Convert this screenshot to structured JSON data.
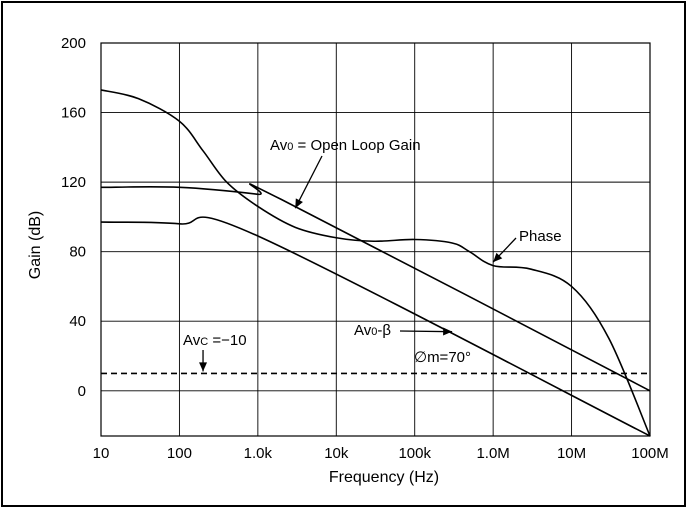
{
  "chart_data": {
    "type": "line",
    "title": "",
    "xlabel": "Frequency (Hz)",
    "ylabel": "Gain (dB)",
    "x_scale": "log",
    "x_ticks": [
      10,
      100,
      1000,
      10000,
      100000,
      1000000,
      10000000,
      100000000
    ],
    "x_tick_labels": [
      "10",
      "100",
      "1.0k",
      "10k",
      "100k",
      "1.0M",
      "10M",
      "100M"
    ],
    "y_ticks": [
      0,
      40,
      80,
      120,
      160,
      200
    ],
    "y_tick_labels": [
      "0",
      "40",
      "80",
      "120",
      "160",
      "200"
    ],
    "xlim": [
      10,
      100000000
    ],
    "ylim": [
      -26,
      200
    ],
    "grid": true,
    "series": [
      {
        "name": "Avo = Open Loop Gain",
        "style": "solid",
        "x": [
          10,
          100,
          1000,
          2000,
          100000000
        ],
        "y": [
          117,
          117,
          113,
          110,
          0
        ]
      },
      {
        "name": "Avo-β",
        "style": "solid",
        "x": [
          10,
          100,
          1000,
          100000000
        ],
        "y": [
          97,
          96,
          89,
          -26
        ]
      },
      {
        "name": "Phase",
        "style": "solid",
        "x": [
          10,
          30,
          100,
          200,
          400,
          1000,
          3000,
          10000,
          30000,
          100000,
          300000,
          500000,
          1000000,
          3000000,
          10000000,
          30000000,
          100000000
        ],
        "y": [
          173,
          168,
          155,
          138,
          120,
          106,
          94,
          88,
          86,
          87,
          85,
          80,
          72,
          70,
          60,
          30,
          -26
        ]
      },
      {
        "name": "Avc = -10",
        "style": "dashed",
        "x": [
          10,
          100000000
        ],
        "y": [
          10,
          10
        ]
      }
    ],
    "annotations": {
      "open_loop": {
        "text": "Avo = Open Loop Gain",
        "points_to_x": 3000,
        "points_to_y": 105
      },
      "phase": {
        "text": "Phase",
        "points_to_x": 1000000,
        "points_to_y": 74
      },
      "avo_beta": {
        "text": "Avo-β",
        "points_to_x": 300000,
        "points_to_y": 34
      },
      "avc": {
        "text": "Avc = −10",
        "points_to_x": 200,
        "points_to_y": 10
      },
      "phase_margin": {
        "text": "∅m=70°"
      }
    }
  },
  "colors": {
    "line": "#000000",
    "grid": "#000000",
    "background": "#ffffff"
  }
}
